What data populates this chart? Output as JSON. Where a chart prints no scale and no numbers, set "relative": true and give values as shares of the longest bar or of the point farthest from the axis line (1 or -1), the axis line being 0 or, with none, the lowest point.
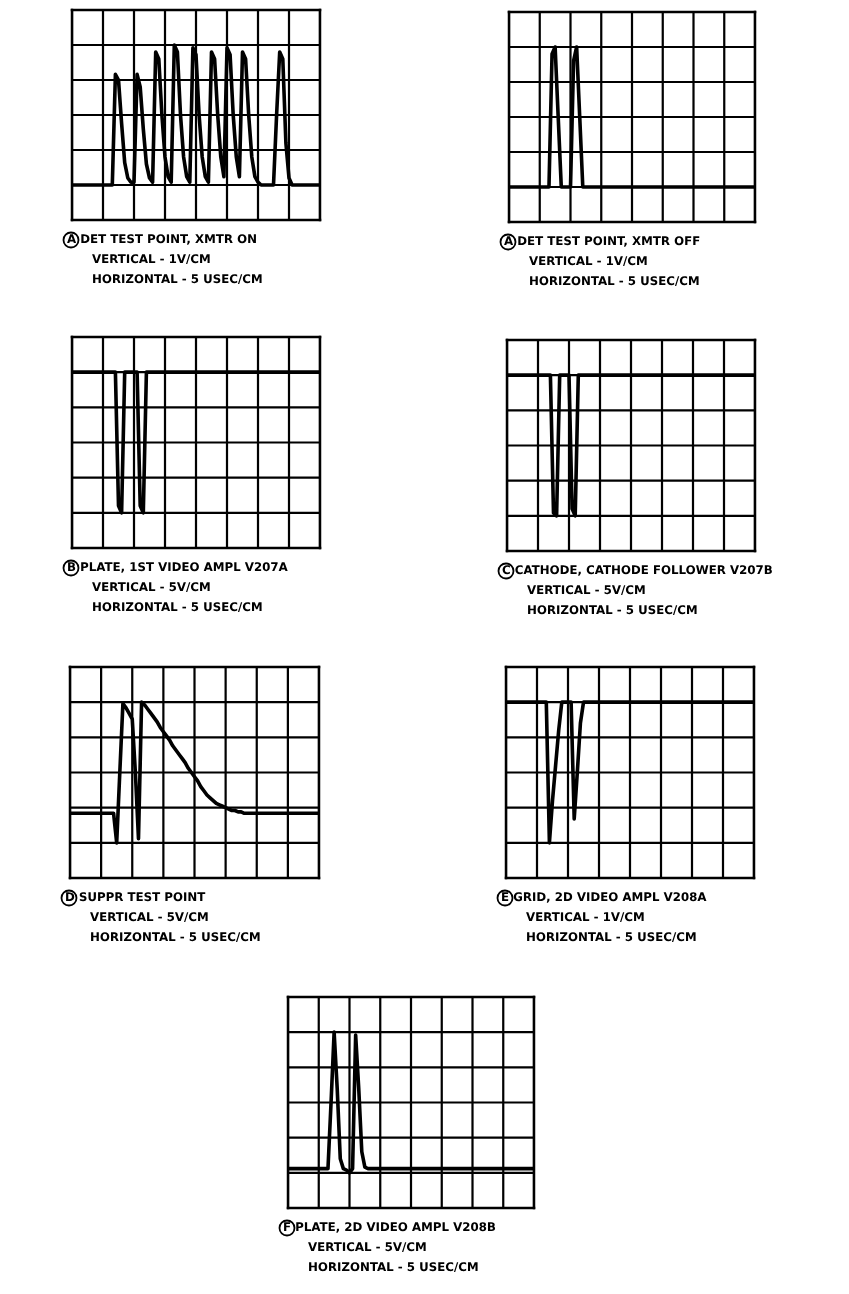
{
  "chart_data": [
    {
      "type": "line",
      "title": "A DET TEST POINT, XMTR ON",
      "annotations": [
        "VERTICAL - 1V/CM",
        "HORIZONTAL - 5 USEC/CM"
      ],
      "relative": true,
      "grid": true,
      "categories": [
        null,
        null,
        null,
        null,
        null,
        null,
        null,
        null,
        null,
        null,
        null,
        null,
        null,
        null,
        null,
        null,
        null,
        null,
        null,
        null,
        null,
        null,
        null,
        null,
        null,
        null,
        null,
        null,
        null,
        null,
        null,
        null,
        null,
        null,
        null,
        null,
        null,
        null,
        null,
        null,
        null,
        null,
        null,
        null,
        null,
        null,
        null,
        null,
        null,
        null,
        null,
        null,
        null,
        null,
        null,
        null,
        null,
        null,
        null,
        null,
        null,
        null,
        null,
        null,
        null,
        null,
        null,
        null,
        null,
        null,
        null,
        null,
        null,
        null,
        null,
        null,
        null,
        null,
        null,
        null,
        null
      ],
      "series": [
        {
          "color": "#000000",
          "values": [
            0,
            0,
            0,
            0,
            0,
            0,
            0,
            0,
            0,
            0,
            0,
            0,
            0,
            0,
            0.79,
            0.75,
            0.44,
            0.16,
            0.05,
            0.02,
            0.02,
            0.79,
            0.7,
            0.4,
            0.15,
            0.05,
            0.02,
            0.95,
            0.9,
            0.5,
            0.2,
            0.06,
            0.02,
            1.0,
            0.95,
            0.5,
            0.2,
            0.06,
            0.02,
            0.98,
            0.93,
            0.5,
            0.2,
            0.06,
            0.02,
            0.95,
            0.9,
            0.5,
            0.2,
            0.06,
            0.98,
            0.93,
            0.5,
            0.2,
            0.06,
            0.95,
            0.9,
            0.5,
            0.2,
            0.06,
            0.02,
            0,
            0,
            0,
            0,
            0,
            0.5,
            0.95,
            0.9,
            0.3,
            0.05,
            0,
            0,
            0,
            0,
            0,
            0,
            0,
            0,
            0,
            0
          ]
        }
      ]
    },
    {
      "type": "line",
      "title": "A DET TEST POINT, XMTR OFF",
      "annotations": [
        "VERTICAL - 1V/CM",
        "HORIZONTAL - 5 USEC/CM"
      ],
      "relative": true,
      "grid": true,
      "categories": [
        null,
        null,
        null,
        null,
        null,
        null,
        null,
        null,
        null,
        null,
        null,
        null,
        null,
        null,
        null,
        null,
        null,
        null,
        null,
        null,
        null,
        null,
        null,
        null,
        null,
        null,
        null,
        null,
        null,
        null,
        null,
        null,
        null,
        null,
        null,
        null,
        null,
        null,
        null,
        null,
        null,
        null,
        null,
        null,
        null,
        null,
        null,
        null,
        null,
        null,
        null,
        null,
        null,
        null,
        null,
        null,
        null,
        null,
        null,
        null,
        null,
        null,
        null,
        null,
        null,
        null,
        null,
        null,
        null,
        null,
        null,
        null,
        null,
        null,
        null,
        null,
        null,
        null,
        null,
        null,
        null
      ],
      "series": [
        {
          "color": "#000000",
          "values": [
            0,
            0,
            0,
            0,
            0,
            0,
            0,
            0,
            0,
            0,
            0,
            0,
            0,
            0,
            0.95,
            1.0,
            0.5,
            0,
            0,
            0,
            0,
            0.9,
            1.0,
            0.5,
            0,
            0,
            0,
            0,
            0,
            0,
            0,
            0,
            0,
            0,
            0,
            0,
            0,
            0,
            0,
            0,
            0,
            0,
            0,
            0,
            0,
            0,
            0,
            0,
            0,
            0,
            0,
            0,
            0,
            0,
            0,
            0,
            0,
            0,
            0,
            0,
            0,
            0,
            0,
            0,
            0,
            0,
            0,
            0,
            0,
            0,
            0,
            0,
            0,
            0,
            0,
            0,
            0,
            0,
            0,
            0,
            0
          ]
        }
      ]
    },
    {
      "type": "line",
      "title": "B PLATE, 1ST VIDEO AMPL V207A",
      "annotations": [
        "VERTICAL - 5V/CM",
        "HORIZONTAL - 5 USEC/CM"
      ],
      "relative": true,
      "grid": true,
      "categories": [
        null,
        null,
        null,
        null,
        null,
        null,
        null,
        null,
        null,
        null,
        null,
        null,
        null,
        null,
        null,
        null,
        null,
        null,
        null,
        null,
        null,
        null,
        null,
        null,
        null,
        null,
        null,
        null,
        null,
        null,
        null,
        null,
        null,
        null,
        null,
        null,
        null,
        null,
        null,
        null,
        null,
        null,
        null,
        null,
        null,
        null,
        null,
        null,
        null,
        null,
        null,
        null,
        null,
        null,
        null,
        null,
        null,
        null,
        null,
        null,
        null,
        null,
        null,
        null,
        null,
        null,
        null,
        null,
        null,
        null,
        null,
        null,
        null,
        null,
        null,
        null,
        null,
        null,
        null,
        null,
        null
      ],
      "series": [
        {
          "color": "#000000",
          "values": [
            1,
            1,
            1,
            1,
            1,
            1,
            1,
            1,
            1,
            1,
            1,
            1,
            1,
            1,
            1,
            0.05,
            0,
            1,
            1,
            1,
            1,
            1,
            0.05,
            0,
            1,
            1,
            1,
            1,
            1,
            1,
            1,
            1,
            1,
            1,
            1,
            1,
            1,
            1,
            1,
            1,
            1,
            1,
            1,
            1,
            1,
            1,
            1,
            1,
            1,
            1,
            1,
            1,
            1,
            1,
            1,
            1,
            1,
            1,
            1,
            1,
            1,
            1,
            1,
            1,
            1,
            1,
            1,
            1,
            1,
            1,
            1,
            1,
            1,
            1,
            1,
            1,
            1,
            1,
            1,
            1,
            1
          ]
        }
      ]
    },
    {
      "type": "line",
      "title": "C CATHODE, CATHODE FOLLOWER V207B",
      "annotations": [
        "VERTICAL - 5V/CM",
        "HORIZONTAL - 5 USEC/CM"
      ],
      "relative": true,
      "grid": true,
      "categories": [
        null,
        null,
        null,
        null,
        null,
        null,
        null,
        null,
        null,
        null,
        null,
        null,
        null,
        null,
        null,
        null,
        null,
        null,
        null,
        null,
        null,
        null,
        null,
        null,
        null,
        null,
        null,
        null,
        null,
        null,
        null,
        null,
        null,
        null,
        null,
        null,
        null,
        null,
        null,
        null,
        null,
        null,
        null,
        null,
        null,
        null,
        null,
        null,
        null,
        null,
        null,
        null,
        null,
        null,
        null,
        null,
        null,
        null,
        null,
        null,
        null,
        null,
        null,
        null,
        null,
        null,
        null,
        null,
        null,
        null,
        null,
        null,
        null,
        null,
        null,
        null,
        null,
        null,
        null,
        null,
        null
      ],
      "series": [
        {
          "color": "#000000",
          "values": [
            1,
            1,
            1,
            1,
            1,
            1,
            1,
            1,
            1,
            1,
            1,
            1,
            1,
            1,
            1,
            0.02,
            0,
            1,
            1,
            1,
            1,
            0.05,
            0,
            1,
            1,
            1,
            1,
            1,
            1,
            1,
            1,
            1,
            1,
            1,
            1,
            1,
            1,
            1,
            1,
            1,
            1,
            1,
            1,
            1,
            1,
            1,
            1,
            1,
            1,
            1,
            1,
            1,
            1,
            1,
            1,
            1,
            1,
            1,
            1,
            1,
            1,
            1,
            1,
            1,
            1,
            1,
            1,
            1,
            1,
            1,
            1,
            1,
            1,
            1,
            1,
            1,
            1,
            1,
            1,
            1,
            1
          ]
        }
      ]
    },
    {
      "type": "line",
      "title": "D SUPPR TEST POINT",
      "annotations": [
        "VERTICAL - 5V/CM",
        "HORIZONTAL - 5 USEC/CM"
      ],
      "relative": true,
      "grid": true,
      "categories": [
        null,
        null,
        null,
        null,
        null,
        null,
        null,
        null,
        null,
        null,
        null,
        null,
        null,
        null,
        null,
        null,
        null,
        null,
        null,
        null,
        null,
        null,
        null,
        null,
        null,
        null,
        null,
        null,
        null,
        null,
        null,
        null,
        null,
        null,
        null,
        null,
        null,
        null,
        null,
        null,
        null,
        null,
        null,
        null,
        null,
        null,
        null,
        null,
        null,
        null,
        null,
        null,
        null,
        null,
        null,
        null,
        null,
        null,
        null,
        null,
        null,
        null,
        null,
        null,
        null,
        null,
        null,
        null,
        null,
        null,
        null,
        null,
        null,
        null,
        null,
        null,
        null,
        null,
        null,
        null,
        null
      ],
      "series": [
        {
          "color": "#000000",
          "values": [
            0.21,
            0.21,
            0.21,
            0.21,
            0.21,
            0.21,
            0.21,
            0.21,
            0.21,
            0.21,
            0.21,
            0.21,
            0.21,
            0.21,
            0.21,
            0,
            0.5,
            0.99,
            0.96,
            0.92,
            0.88,
            0.5,
            0.03,
            1.0,
            0.98,
            0.95,
            0.92,
            0.89,
            0.86,
            0.82,
            0.79,
            0.76,
            0.73,
            0.69,
            0.66,
            0.63,
            0.6,
            0.57,
            0.53,
            0.5,
            0.47,
            0.44,
            0.4,
            0.37,
            0.34,
            0.32,
            0.3,
            0.28,
            0.27,
            0.26,
            0.25,
            0.24,
            0.23,
            0.23,
            0.22,
            0.22,
            0.21,
            0.21,
            0.21,
            0.21,
            0.21,
            0.21,
            0.21,
            0.21,
            0.21,
            0.21,
            0.21,
            0.21,
            0.21,
            0.21,
            0.21,
            0.21,
            0.21,
            0.21,
            0.21,
            0.21,
            0.21,
            0.21,
            0.21,
            0.21,
            0.21
          ]
        }
      ]
    },
    {
      "type": "line",
      "title": "E GRID, 2D VIDEO AMPL V208A",
      "annotations": [
        "VERTICAL - 1V/CM",
        "HORIZONTAL - 5 USEC/CM"
      ],
      "relative": true,
      "grid": true,
      "categories": [
        null,
        null,
        null,
        null,
        null,
        null,
        null,
        null,
        null,
        null,
        null,
        null,
        null,
        null,
        null,
        null,
        null,
        null,
        null,
        null,
        null,
        null,
        null,
        null,
        null,
        null,
        null,
        null,
        null,
        null,
        null,
        null,
        null,
        null,
        null,
        null,
        null,
        null,
        null,
        null,
        null,
        null,
        null,
        null,
        null,
        null,
        null,
        null,
        null,
        null,
        null,
        null,
        null,
        null,
        null,
        null,
        null,
        null,
        null,
        null,
        null,
        null,
        null,
        null,
        null,
        null,
        null,
        null,
        null,
        null,
        null,
        null,
        null,
        null,
        null,
        null,
        null,
        null,
        null,
        null,
        null
      ],
      "series": [
        {
          "color": "#000000",
          "values": [
            1,
            1,
            1,
            1,
            1,
            1,
            1,
            1,
            1,
            1,
            1,
            1,
            1,
            1,
            0,
            0.3,
            0.55,
            0.8,
            1,
            1,
            1,
            1,
            0.17,
            0.5,
            0.85,
            1,
            1,
            1,
            1,
            1,
            1,
            1,
            1,
            1,
            1,
            1,
            1,
            1,
            1,
            1,
            1,
            1,
            1,
            1,
            1,
            1,
            1,
            1,
            1,
            1,
            1,
            1,
            1,
            1,
            1,
            1,
            1,
            1,
            1,
            1,
            1,
            1,
            1,
            1,
            1,
            1,
            1,
            1,
            1,
            1,
            1,
            1,
            1,
            1,
            1,
            1,
            1,
            1,
            1,
            1,
            1
          ]
        }
      ]
    },
    {
      "type": "line",
      "title": "F PLATE, 2D VIDEO AMPL V208B",
      "annotations": [
        "VERTICAL - 5V/CM",
        "HORIZONTAL - 5 USEC/CM"
      ],
      "relative": true,
      "grid": true,
      "categories": [
        null,
        null,
        null,
        null,
        null,
        null,
        null,
        null,
        null,
        null,
        null,
        null,
        null,
        null,
        null,
        null,
        null,
        null,
        null,
        null,
        null,
        null,
        null,
        null,
        null,
        null,
        null,
        null,
        null,
        null,
        null,
        null,
        null,
        null,
        null,
        null,
        null,
        null,
        null,
        null,
        null,
        null,
        null,
        null,
        null,
        null,
        null,
        null,
        null,
        null,
        null,
        null,
        null,
        null,
        null,
        null,
        null,
        null,
        null,
        null,
        null,
        null,
        null,
        null,
        null,
        null,
        null,
        null,
        null,
        null,
        null,
        null,
        null,
        null,
        null,
        null,
        null,
        null,
        null,
        null,
        null
      ],
      "series": [
        {
          "color": "#000000",
          "values": [
            0.03,
            0.03,
            0.03,
            0.03,
            0.03,
            0.03,
            0.03,
            0.03,
            0.03,
            0.03,
            0.03,
            0.03,
            0.03,
            0.03,
            0.5,
            1.0,
            0.6,
            0.1,
            0.03,
            0.02,
            0,
            0.03,
            0.98,
            0.6,
            0.15,
            0.04,
            0.03,
            0.03,
            0.03,
            0.03,
            0.03,
            0.03,
            0.03,
            0.03,
            0.03,
            0.03,
            0.03,
            0.03,
            0.03,
            0.03,
            0.03,
            0.03,
            0.03,
            0.03,
            0.03,
            0.03,
            0.03,
            0.03,
            0.03,
            0.03,
            0.03,
            0.03,
            0.03,
            0.03,
            0.03,
            0.03,
            0.03,
            0.03,
            0.03,
            0.03,
            0.03,
            0.03,
            0.03,
            0.03,
            0.03,
            0.03,
            0.03,
            0.03,
            0.03,
            0.03,
            0.03,
            0.03,
            0.03,
            0.03,
            0.03,
            0.03,
            0.03,
            0.03,
            0.03,
            0.03,
            0.03
          ]
        }
      ]
    }
  ]
}
